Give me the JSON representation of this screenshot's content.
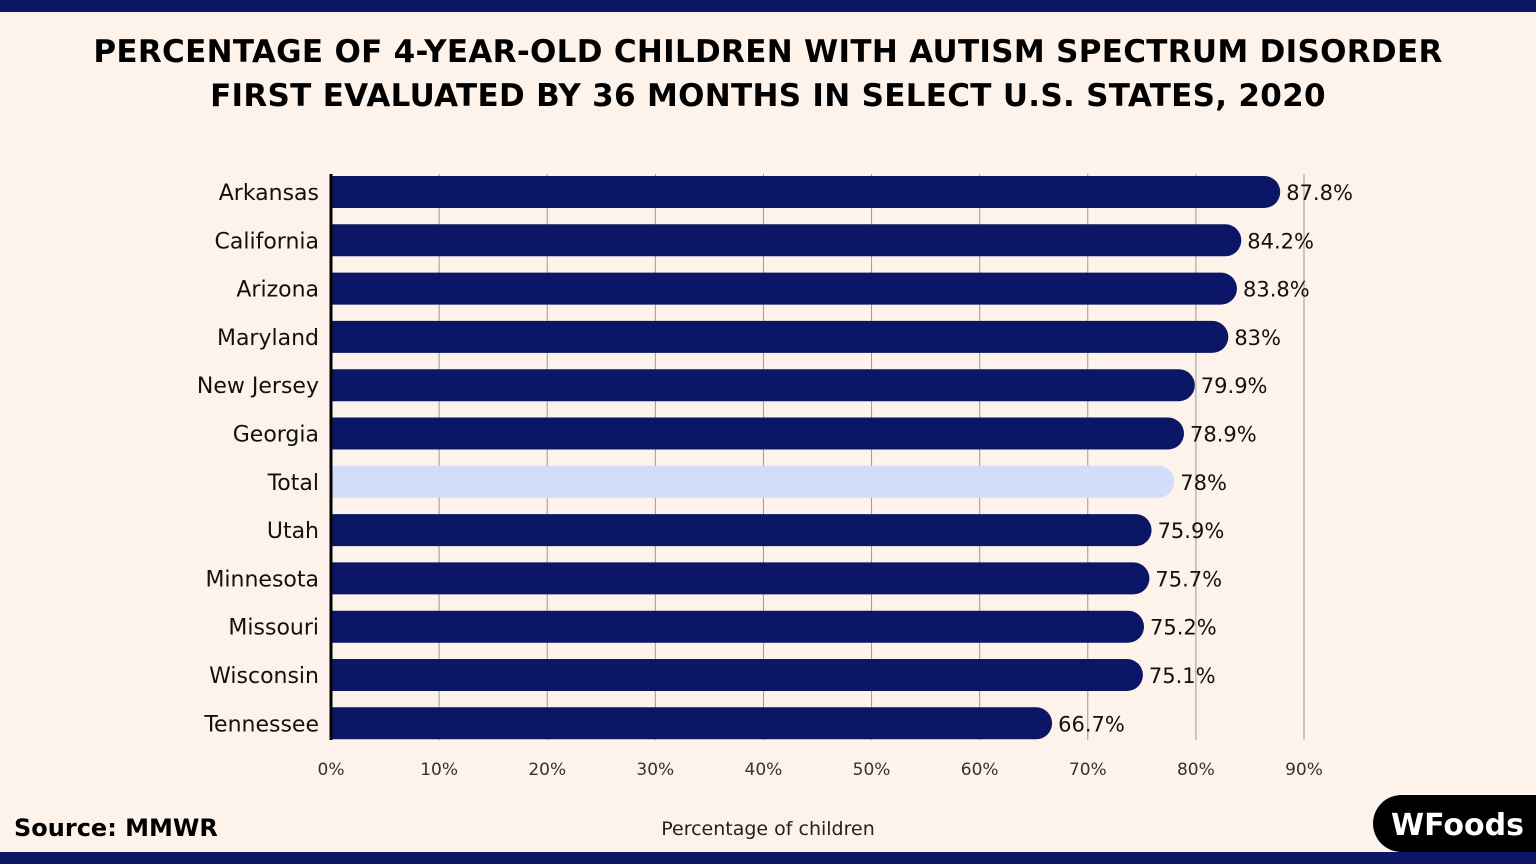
{
  "title": [
    "PERCENTAGE OF 4-YEAR-OLD CHILDREN WITH AUTISM SPECTRUM DISORDER",
    "FIRST EVALUATED BY 36 MONTHS IN SELECT U.S. STATES, 2020"
  ],
  "source": "Source: MMWR",
  "logo": "WFoods",
  "colors": {
    "bar": "#0b1766",
    "highlight": "#d3dcfb",
    "background": "#fdf3ea"
  },
  "chart_data": {
    "type": "bar",
    "orientation": "horizontal",
    "title": "PERCENTAGE OF 4-YEAR-OLD CHILDREN WITH AUTISM SPECTRUM DISORDER FIRST EVALUATED BY 36 MONTHS IN SELECT U.S. STATES, 2020",
    "categories": [
      "Arkansas",
      "California",
      "Arizona",
      "Maryland",
      "New Jersey",
      "Georgia",
      "Total",
      "Utah",
      "Minnesota",
      "Missouri",
      "Wisconsin",
      "Tennessee"
    ],
    "values": [
      87.8,
      84.2,
      83.8,
      83,
      79.9,
      78.9,
      78,
      75.9,
      75.7,
      75.2,
      75.1,
      66.7
    ],
    "data_labels": [
      "87.8%",
      "84.2%",
      "83.8%",
      "83%",
      "79.9%",
      "78.9%",
      "78%",
      "75.9%",
      "75.7%",
      "75.2%",
      "75.1%",
      "66.7%"
    ],
    "highlighted_category": "Total",
    "xlabel": "Percentage of children",
    "xlim": [
      0,
      90
    ],
    "xticks": [
      "0%",
      "10%",
      "20%",
      "30%",
      "40%",
      "50%",
      "60%",
      "70%",
      "80%",
      "90%"
    ],
    "grid": "vertical"
  }
}
